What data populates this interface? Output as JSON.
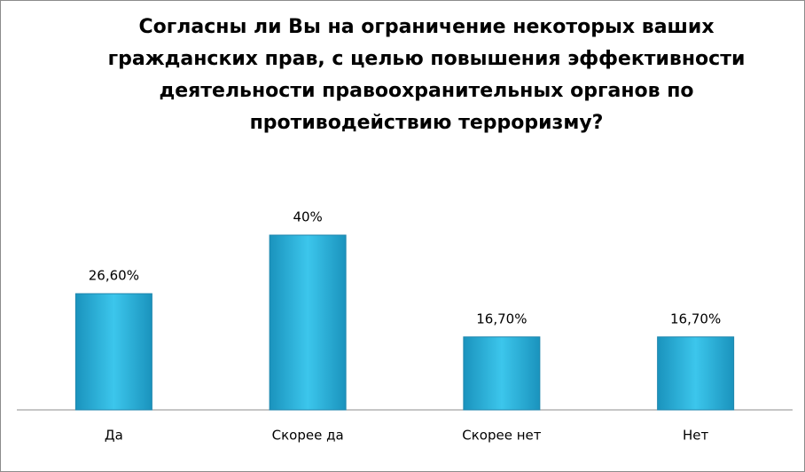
{
  "chart_data": {
    "type": "bar",
    "title": "Согласны ли Вы на ограничение некоторых ваших гражданских прав, с целью повышения эффективности деятельности правоохранительных органов по противодействию терроризму?",
    "categories": [
      "Да",
      "Скорее да",
      "Скорее нет",
      "Нет"
    ],
    "values": [
      26.6,
      40,
      16.7,
      16.7
    ],
    "value_labels": [
      "26,60%",
      "40%",
      "16,70%",
      "16,70%"
    ],
    "color": "#25b3dc"
  }
}
